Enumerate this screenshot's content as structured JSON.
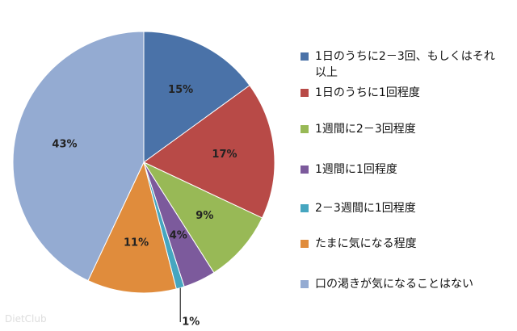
{
  "chart_data": {
    "type": "pie",
    "categories": [
      "1日のうちに2－3回、もしくはそれ以上",
      "1日のうちに1回程度",
      "1週間に2－3回程度",
      "1週間に1回程度",
      "2－3週間に1回程度",
      "たまに気になる程度",
      "口の渇きが気になることはない"
    ],
    "values": [
      15,
      17,
      9,
      4,
      1,
      11,
      43
    ],
    "value_labels": [
      "15%",
      "17%",
      "9%",
      "4%",
      "1%",
      "11%",
      "43%"
    ],
    "colors": [
      "#4a72a8",
      "#b84a47",
      "#98b956",
      "#7c5a9c",
      "#46a6c0",
      "#e08c3c",
      "#94abd2"
    ],
    "legend": "right",
    "watermark": "DietClub"
  }
}
